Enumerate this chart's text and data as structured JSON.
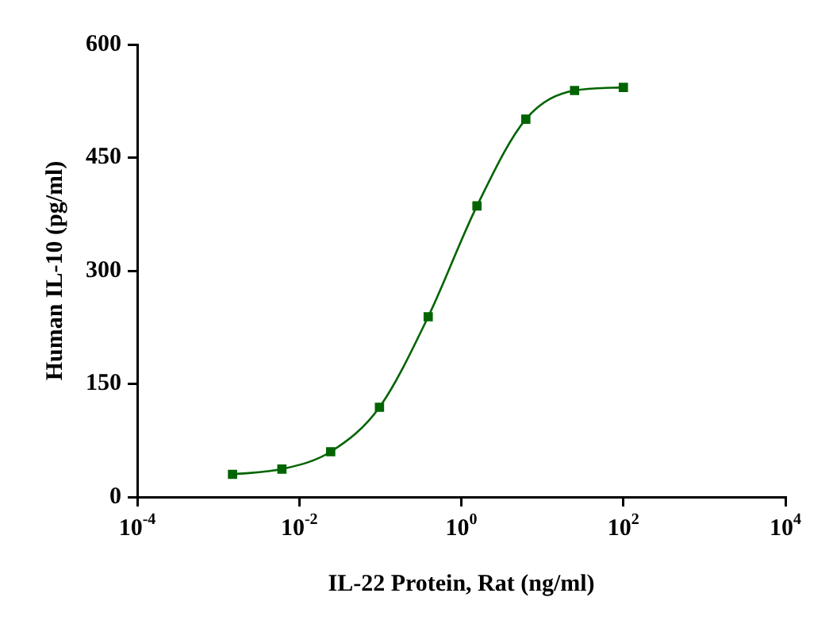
{
  "chart_data": {
    "type": "line",
    "xlabel": "IL-22 Protein, Rat (ng/ml)",
    "ylabel": "Human IL-10 (pg/ml)",
    "x": [
      0.0015,
      0.0061,
      0.0244,
      0.0977,
      0.39,
      1.56,
      6.25,
      25,
      100
    ],
    "series": [
      {
        "color": "#006400",
        "values": [
          30,
          37,
          60,
          119,
          239,
          386,
          501,
          539,
          543
        ]
      }
    ],
    "log": "x",
    "xlim": [
      0.0001,
      10000
    ],
    "xticks": [
      {
        "value": 0.0001,
        "label": "10$^{-4}$"
      },
      {
        "value": 0.01,
        "label": "10$^{-2}$"
      },
      {
        "value": 1,
        "label": "10$^{0}$"
      },
      {
        "value": 100,
        "label": "10$^{2}$"
      },
      {
        "value": 10000,
        "label": "10$^{4}$"
      }
    ],
    "ylim": [
      0,
      600
    ],
    "yticks": [
      0,
      150,
      300,
      450,
      600
    ],
    "grid": false,
    "legend": false,
    "marker": "square",
    "line_style": "solid"
  }
}
